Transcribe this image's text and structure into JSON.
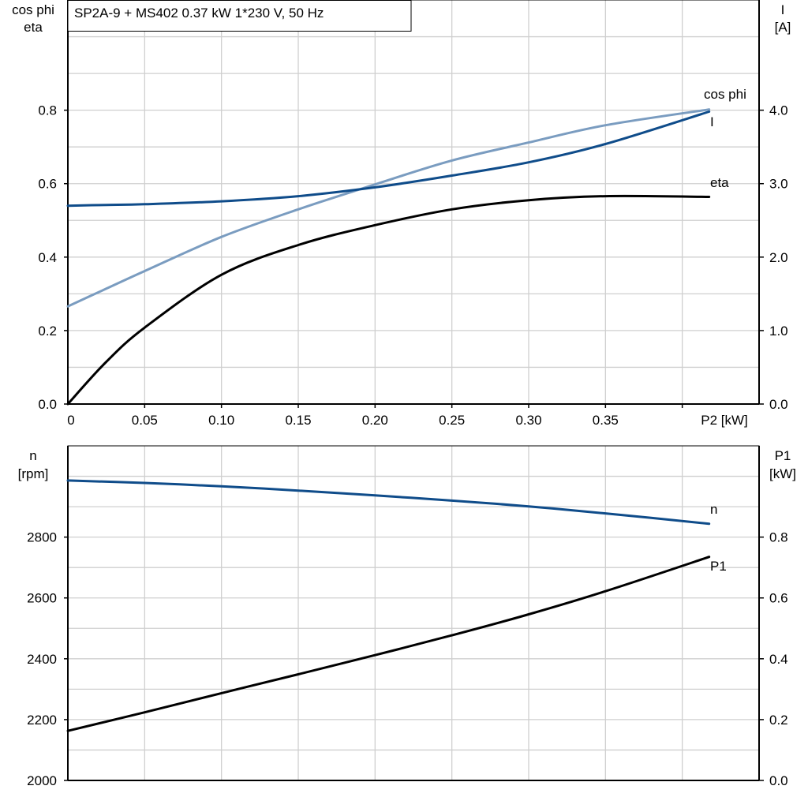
{
  "chart_data": [
    {
      "type": "line",
      "title": "SP2A-9 + MS402   0.37 kW   1*230 V, 50 Hz",
      "xlabel": "P2 [kW]",
      "xlim": [
        0,
        0.45
      ],
      "xticks": [
        "0",
        "0.05",
        "0.10",
        "0.15",
        "0.20",
        "0.25",
        "0.30",
        "0.35"
      ],
      "ylabel_left": [
        "cos phi",
        "eta"
      ],
      "ylim_left": [
        0,
        1.1
      ],
      "yticks_left": [
        "0.0",
        "0.2",
        "0.4",
        "0.6",
        "0.8"
      ],
      "ylabel_right": [
        "I",
        "[A]"
      ],
      "ylim_right": [
        0,
        5.5
      ],
      "yticks_right": [
        "0.0",
        "1.0",
        "2.0",
        "3.0",
        "4.0"
      ],
      "grid": true,
      "x": [
        0,
        0.025,
        0.05,
        0.1,
        0.15,
        0.2,
        0.25,
        0.3,
        0.35,
        0.4175
      ],
      "series": [
        {
          "name": "cos phi",
          "axis": "left",
          "color": "#7a9cc0",
          "values": [
            0.266,
            0.314,
            0.362,
            0.455,
            0.53,
            0.598,
            0.663,
            0.712,
            0.759,
            0.802
          ]
        },
        {
          "name": "I",
          "axis": "right",
          "color": "#0f4c8a",
          "values": [
            2.7,
            2.71,
            2.72,
            2.76,
            2.83,
            2.95,
            3.11,
            3.29,
            3.54,
            3.98
          ]
        },
        {
          "name": "eta",
          "axis": "left",
          "color": "#000000",
          "values": [
            0.0,
            0.115,
            0.208,
            0.352,
            0.433,
            0.487,
            0.53,
            0.555,
            0.566,
            0.564
          ]
        }
      ]
    },
    {
      "type": "line",
      "xlim": [
        0,
        0.45
      ],
      "ylabel_left": [
        "n",
        "[rpm]"
      ],
      "ylim_left": [
        2000,
        3100
      ],
      "yticks_left": [
        "2000",
        "2200",
        "2400",
        "2600",
        "2800"
      ],
      "ylabel_right": [
        "P1",
        "[kW]"
      ],
      "ylim_right": [
        0,
        1.1
      ],
      "yticks_right": [
        "0.0",
        "0.2",
        "0.4",
        "0.6",
        "0.8"
      ],
      "grid": true,
      "x": [
        0,
        0.05,
        0.1,
        0.15,
        0.2,
        0.25,
        0.3,
        0.35,
        0.4175
      ],
      "series": [
        {
          "name": "n",
          "axis": "left",
          "color": "#0f4c8a",
          "values": [
            2986,
            2978,
            2967,
            2953,
            2937,
            2920,
            2901,
            2878,
            2844
          ]
        },
        {
          "name": "P1",
          "axis": "right",
          "color": "#000000",
          "values": [
            0.163,
            0.224,
            0.287,
            0.349,
            0.412,
            0.477,
            0.546,
            0.622,
            0.735
          ]
        }
      ]
    }
  ]
}
